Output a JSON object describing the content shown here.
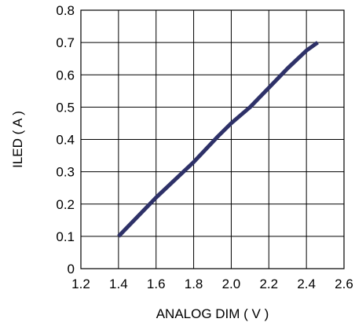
{
  "chart_data": {
    "type": "line",
    "title": "",
    "xlabel": "ANALOG DIM ( V )",
    "ylabel": "ILED ( A )",
    "xlim": [
      1.2,
      2.6
    ],
    "ylim": [
      0,
      0.8
    ],
    "x_ticks": [
      1.2,
      1.4,
      1.6,
      1.8,
      2.0,
      2.2,
      2.4,
      2.6
    ],
    "x_tick_labels": [
      "1.2",
      "1.4",
      "1.6",
      "1.8",
      "2.0",
      "2.2",
      "2.4",
      "2.6"
    ],
    "y_ticks": [
      0,
      0.1,
      0.2,
      0.3,
      0.4,
      0.5,
      0.6,
      0.7,
      0.8
    ],
    "y_tick_labels": [
      "0",
      "0.1",
      "0.2",
      "0.3",
      "0.4",
      "0.5",
      "0.6",
      "0.7",
      "0.8"
    ],
    "grid": true,
    "legend": "none",
    "series": [
      {
        "x": [
          1.4,
          1.6,
          1.8,
          1.93,
          2.0,
          2.1,
          2.2,
          2.3,
          2.4,
          2.46
        ],
        "y": [
          0.1,
          0.22,
          0.33,
          0.41,
          0.45,
          0.5,
          0.56,
          0.62,
          0.675,
          0.7
        ],
        "color": "#2e3168"
      }
    ]
  }
}
